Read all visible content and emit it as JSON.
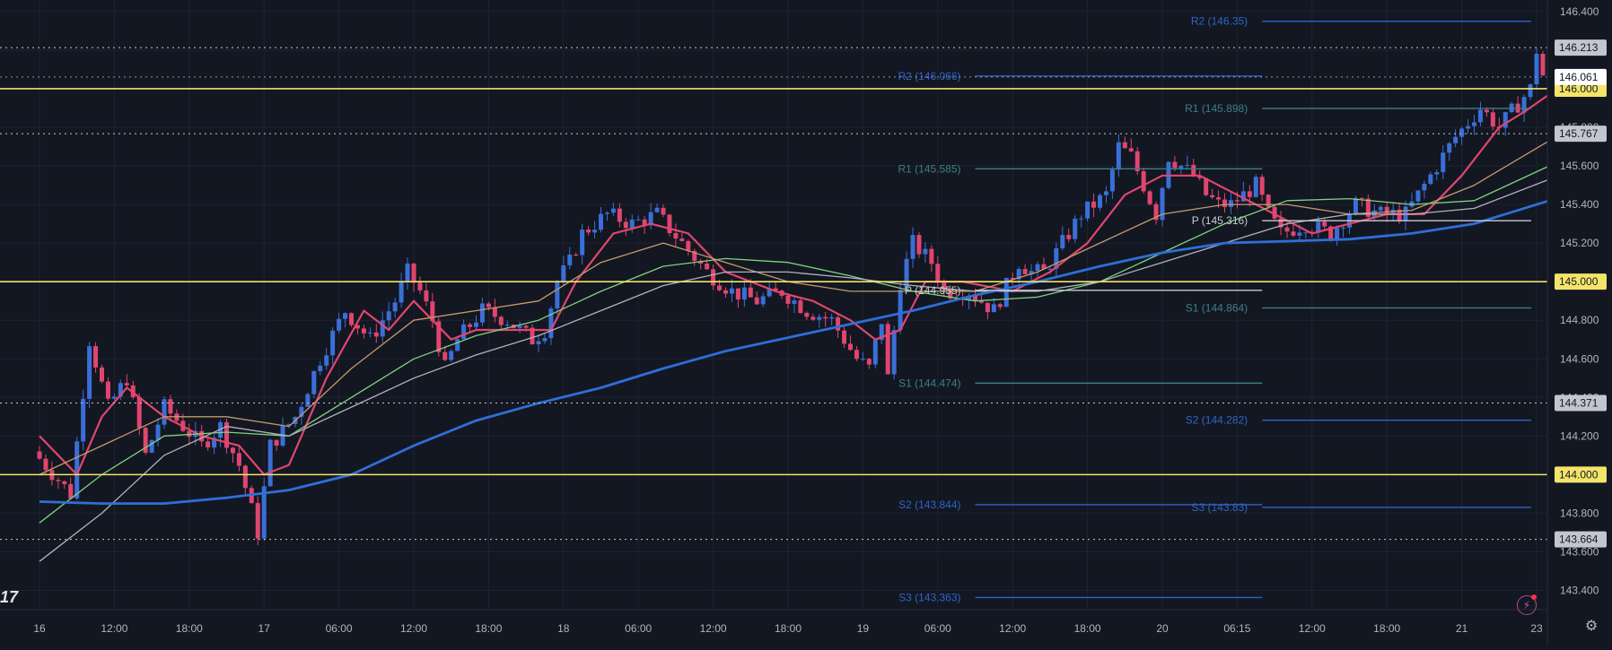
{
  "chart_data": {
    "type": "candlestick",
    "ylim": [
      143.3,
      146.46
    ],
    "price_ticks": [
      "146.400",
      "146.200",
      "146.000",
      "145.800",
      "145.600",
      "145.400",
      "145.200",
      "145.000",
      "144.800",
      "144.600",
      "144.400",
      "144.200",
      "144.000",
      "143.800",
      "143.600",
      "143.400"
    ],
    "time_ticks": [
      {
        "label": "16",
        "bar": 0
      },
      {
        "label": "12:00",
        "bar": 12
      },
      {
        "label": "18:00",
        "bar": 24
      },
      {
        "label": "17",
        "bar": 36
      },
      {
        "label": "06:00",
        "bar": 48
      },
      {
        "label": "12:00",
        "bar": 60
      },
      {
        "label": "18:00",
        "bar": 72
      },
      {
        "label": "18",
        "bar": 84
      },
      {
        "label": "06:00",
        "bar": 96
      },
      {
        "label": "12:00",
        "bar": 108
      },
      {
        "label": "18:00",
        "bar": 120
      },
      {
        "label": "19",
        "bar": 132
      },
      {
        "label": "06:00",
        "bar": 144
      },
      {
        "label": "12:00",
        "bar": 156
      },
      {
        "label": "18:00",
        "bar": 168
      },
      {
        "label": "20",
        "bar": 180
      },
      {
        "label": "06:15",
        "bar": 192
      },
      {
        "label": "12:00",
        "bar": 204
      },
      {
        "label": "18:00",
        "bar": 216
      },
      {
        "label": "21",
        "bar": 228
      },
      {
        "label": "23",
        "bar": 240
      }
    ],
    "bar_count": 242,
    "price_path": [
      [
        0,
        144.12
      ],
      [
        6,
        143.9
      ],
      [
        9,
        144.7
      ],
      [
        12,
        144.35
      ],
      [
        15,
        144.5
      ],
      [
        18,
        144.1
      ],
      [
        21,
        144.35
      ],
      [
        24,
        144.25
      ],
      [
        27,
        144.15
      ],
      [
        30,
        144.25
      ],
      [
        33,
        144.05
      ],
      [
        36,
        143.7
      ],
      [
        38,
        144.15
      ],
      [
        42,
        144.3
      ],
      [
        46,
        144.6
      ],
      [
        50,
        144.85
      ],
      [
        54,
        144.7
      ],
      [
        58,
        144.9
      ],
      [
        60,
        145.05
      ],
      [
        62,
        144.95
      ],
      [
        64,
        144.8
      ],
      [
        66,
        144.55
      ],
      [
        68,
        144.7
      ],
      [
        72,
        144.85
      ],
      [
        76,
        144.8
      ],
      [
        80,
        144.7
      ],
      [
        82,
        144.75
      ],
      [
        84,
        145.0
      ],
      [
        86,
        145.1
      ],
      [
        88,
        145.25
      ],
      [
        92,
        145.35
      ],
      [
        96,
        145.3
      ],
      [
        100,
        145.35
      ],
      [
        104,
        145.2
      ],
      [
        108,
        145.05
      ],
      [
        112,
        144.95
      ],
      [
        116,
        144.9
      ],
      [
        120,
        144.95
      ],
      [
        124,
        144.85
      ],
      [
        128,
        144.8
      ],
      [
        132,
        144.6
      ],
      [
        134,
        144.55
      ],
      [
        136,
        144.8
      ],
      [
        137,
        144.5
      ],
      [
        139,
        145.0
      ],
      [
        141,
        145.2
      ],
      [
        144,
        145.1
      ],
      [
        146,
        144.95
      ],
      [
        150,
        144.95
      ],
      [
        154,
        144.85
      ],
      [
        158,
        145.1
      ],
      [
        160,
        145.05
      ],
      [
        162,
        145.05
      ],
      [
        164,
        145.15
      ],
      [
        168,
        145.35
      ],
      [
        172,
        145.45
      ],
      [
        174,
        145.7
      ],
      [
        176,
        145.65
      ],
      [
        178,
        145.5
      ],
      [
        180,
        145.35
      ],
      [
        182,
        145.65
      ],
      [
        186,
        145.55
      ],
      [
        188,
        145.45
      ],
      [
        190,
        145.4
      ],
      [
        192,
        145.4
      ],
      [
        196,
        145.5
      ],
      [
        198,
        145.35
      ],
      [
        200,
        145.25
      ],
      [
        204,
        145.3
      ],
      [
        208,
        145.25
      ],
      [
        212,
        145.4
      ],
      [
        216,
        145.35
      ],
      [
        220,
        145.35
      ],
      [
        224,
        145.55
      ],
      [
        228,
        145.75
      ],
      [
        232,
        145.9
      ],
      [
        235,
        145.8
      ],
      [
        238,
        145.92
      ],
      [
        240,
        146.0
      ],
      [
        241,
        146.2
      ],
      [
        242,
        146.07
      ]
    ],
    "moving_averages": [
      {
        "color": "#e0466e",
        "points": [
          [
            0,
            144.2
          ],
          [
            6,
            144.0
          ],
          [
            10,
            144.3
          ],
          [
            14,
            144.45
          ],
          [
            20,
            144.3
          ],
          [
            26,
            144.2
          ],
          [
            32,
            144.15
          ],
          [
            36,
            144.0
          ],
          [
            40,
            144.05
          ],
          [
            46,
            144.5
          ],
          [
            52,
            144.85
          ],
          [
            56,
            144.75
          ],
          [
            60,
            144.9
          ],
          [
            66,
            144.7
          ],
          [
            70,
            144.75
          ],
          [
            76,
            144.75
          ],
          [
            82,
            144.75
          ],
          [
            86,
            145.0
          ],
          [
            92,
            145.25
          ],
          [
            98,
            145.3
          ],
          [
            104,
            145.25
          ],
          [
            110,
            145.05
          ],
          [
            118,
            144.95
          ],
          [
            124,
            144.9
          ],
          [
            130,
            144.8
          ],
          [
            134,
            144.7
          ],
          [
            138,
            144.75
          ],
          [
            142,
            145.0
          ],
          [
            148,
            145.0
          ],
          [
            156,
            144.95
          ],
          [
            162,
            145.05
          ],
          [
            168,
            145.2
          ],
          [
            174,
            145.45
          ],
          [
            180,
            145.55
          ],
          [
            186,
            145.55
          ],
          [
            192,
            145.45
          ],
          [
            198,
            145.35
          ],
          [
            204,
            145.25
          ],
          [
            210,
            145.3
          ],
          [
            216,
            145.35
          ],
          [
            222,
            145.35
          ],
          [
            228,
            145.55
          ],
          [
            234,
            145.8
          ],
          [
            238,
            145.88
          ],
          [
            242,
            145.97
          ]
        ]
      },
      {
        "color": "#c49a6c",
        "points": [
          [
            0,
            144.0
          ],
          [
            10,
            144.15
          ],
          [
            20,
            144.3
          ],
          [
            30,
            144.3
          ],
          [
            40,
            144.25
          ],
          [
            50,
            144.55
          ],
          [
            60,
            144.8
          ],
          [
            70,
            144.85
          ],
          [
            80,
            144.9
          ],
          [
            90,
            145.1
          ],
          [
            100,
            145.2
          ],
          [
            110,
            145.1
          ],
          [
            120,
            145.0
          ],
          [
            130,
            144.95
          ],
          [
            140,
            144.95
          ],
          [
            150,
            144.95
          ],
          [
            160,
            145.05
          ],
          [
            170,
            145.2
          ],
          [
            180,
            145.35
          ],
          [
            190,
            145.4
          ],
          [
            200,
            145.4
          ],
          [
            210,
            145.35
          ],
          [
            220,
            145.37
          ],
          [
            230,
            145.5
          ],
          [
            242,
            145.73
          ]
        ]
      },
      {
        "color": "#7fd37f",
        "points": [
          [
            0,
            143.75
          ],
          [
            10,
            144.0
          ],
          [
            20,
            144.2
          ],
          [
            30,
            144.22
          ],
          [
            40,
            144.2
          ],
          [
            50,
            144.4
          ],
          [
            60,
            144.6
          ],
          [
            70,
            144.72
          ],
          [
            80,
            144.8
          ],
          [
            90,
            144.95
          ],
          [
            100,
            145.08
          ],
          [
            110,
            145.12
          ],
          [
            120,
            145.1
          ],
          [
            130,
            145.03
          ],
          [
            140,
            144.95
          ],
          [
            150,
            144.9
          ],
          [
            160,
            144.92
          ],
          [
            170,
            145.0
          ],
          [
            180,
            145.15
          ],
          [
            190,
            145.3
          ],
          [
            200,
            145.42
          ],
          [
            210,
            145.43
          ],
          [
            220,
            145.4
          ],
          [
            230,
            145.42
          ],
          [
            242,
            145.6
          ]
        ]
      },
      {
        "color": "#b0b3bd",
        "points": [
          [
            0,
            143.55
          ],
          [
            10,
            143.8
          ],
          [
            20,
            144.1
          ],
          [
            30,
            144.25
          ],
          [
            40,
            144.2
          ],
          [
            50,
            144.35
          ],
          [
            60,
            144.5
          ],
          [
            70,
            144.62
          ],
          [
            80,
            144.72
          ],
          [
            90,
            144.85
          ],
          [
            100,
            144.98
          ],
          [
            110,
            145.05
          ],
          [
            120,
            145.05
          ],
          [
            130,
            145.02
          ],
          [
            140,
            144.98
          ],
          [
            150,
            144.95
          ],
          [
            160,
            144.95
          ],
          [
            170,
            145.0
          ],
          [
            180,
            145.1
          ],
          [
            190,
            145.2
          ],
          [
            200,
            145.3
          ],
          [
            210,
            145.35
          ],
          [
            220,
            145.35
          ],
          [
            230,
            145.38
          ],
          [
            242,
            145.53
          ]
        ]
      },
      {
        "color": "#2e6fd6",
        "points": [
          [
            0,
            143.86
          ],
          [
            10,
            143.85
          ],
          [
            20,
            143.85
          ],
          [
            30,
            143.88
          ],
          [
            40,
            143.92
          ],
          [
            50,
            144.0
          ],
          [
            60,
            144.15
          ],
          [
            70,
            144.28
          ],
          [
            80,
            144.37
          ],
          [
            90,
            144.45
          ],
          [
            100,
            144.55
          ],
          [
            110,
            144.64
          ],
          [
            120,
            144.71
          ],
          [
            130,
            144.78
          ],
          [
            140,
            144.85
          ],
          [
            150,
            144.93
          ],
          [
            160,
            145.0
          ],
          [
            170,
            145.08
          ],
          [
            180,
            145.15
          ],
          [
            190,
            145.2
          ],
          [
            200,
            145.21
          ],
          [
            210,
            145.22
          ],
          [
            220,
            145.25
          ],
          [
            230,
            145.3
          ],
          [
            242,
            145.42
          ]
        ]
      }
    ],
    "horizontal_levels": [
      {
        "value": 146.0,
        "color": "#f3e46a",
        "label": "146.000"
      },
      {
        "value": 145.0,
        "color": "#f3e46a",
        "label": "145.000"
      },
      {
        "value": 144.0,
        "color": "#f3e46a",
        "label": "144.000"
      }
    ],
    "dotted_levels": [
      {
        "value": 146.213,
        "label": "146.213"
      },
      {
        "value": 145.767,
        "label": "145.767"
      },
      {
        "value": 144.371,
        "label": "144.371"
      },
      {
        "value": 143.664,
        "label": "143.664"
      },
      {
        "value": 146.061,
        "label": "146.061"
      }
    ],
    "current_price": {
      "value": 146.061,
      "label": "146.061"
    },
    "pivots": [
      {
        "text": "R2 (146.066)",
        "value": 146.066,
        "from_bar": 150,
        "to_bar": 196,
        "color": "#2e64c9"
      },
      {
        "text": "R1 (145.585)",
        "value": 145.585,
        "from_bar": 150,
        "to_bar": 196,
        "color": "#3d7f86"
      },
      {
        "text": "P (144.955)",
        "value": 144.955,
        "from_bar": 150,
        "to_bar": 196,
        "color": "#c8cbd3"
      },
      {
        "text": "S1 (144.474)",
        "value": 144.474,
        "from_bar": 150,
        "to_bar": 196,
        "color": "#3d7f86"
      },
      {
        "text": "S2 (143.844)",
        "value": 143.844,
        "from_bar": 150,
        "to_bar": 196,
        "color": "#2e64c9"
      },
      {
        "text": "S3 (143.363)",
        "value": 143.363,
        "from_bar": 150,
        "to_bar": 196,
        "color": "#2e64c9"
      },
      {
        "text": "R2 (146.35)",
        "value": 146.35,
        "from_bar": 196,
        "to_bar": 243,
        "color": "#2e64c9"
      },
      {
        "text": "R1 (145.898)",
        "value": 145.898,
        "from_bar": 196,
        "to_bar": 243,
        "color": "#3d7f86"
      },
      {
        "text": "P (145.316)",
        "value": 145.316,
        "from_bar": 196,
        "to_bar": 243,
        "color": "#c8cbd3"
      },
      {
        "text": "S1 (144.864)",
        "value": 144.864,
        "from_bar": 196,
        "to_bar": 243,
        "color": "#3d7f86"
      },
      {
        "text": "S2 (144.282)",
        "value": 144.282,
        "from_bar": 196,
        "to_bar": 243,
        "color": "#2e64c9"
      },
      {
        "text": "S3 (143.83)",
        "value": 143.83,
        "from_bar": 196,
        "to_bar": 243,
        "color": "#2e64c9"
      }
    ],
    "colors": {
      "background": "#131722",
      "grid": "#1f2331",
      "up": "#3a6fd8",
      "down": "#e0456f",
      "axis_text": "#b2b5be"
    }
  },
  "ui": {
    "logo": "17",
    "settings_icon": "gear-icon",
    "flash_icon": "lightning-icon"
  }
}
